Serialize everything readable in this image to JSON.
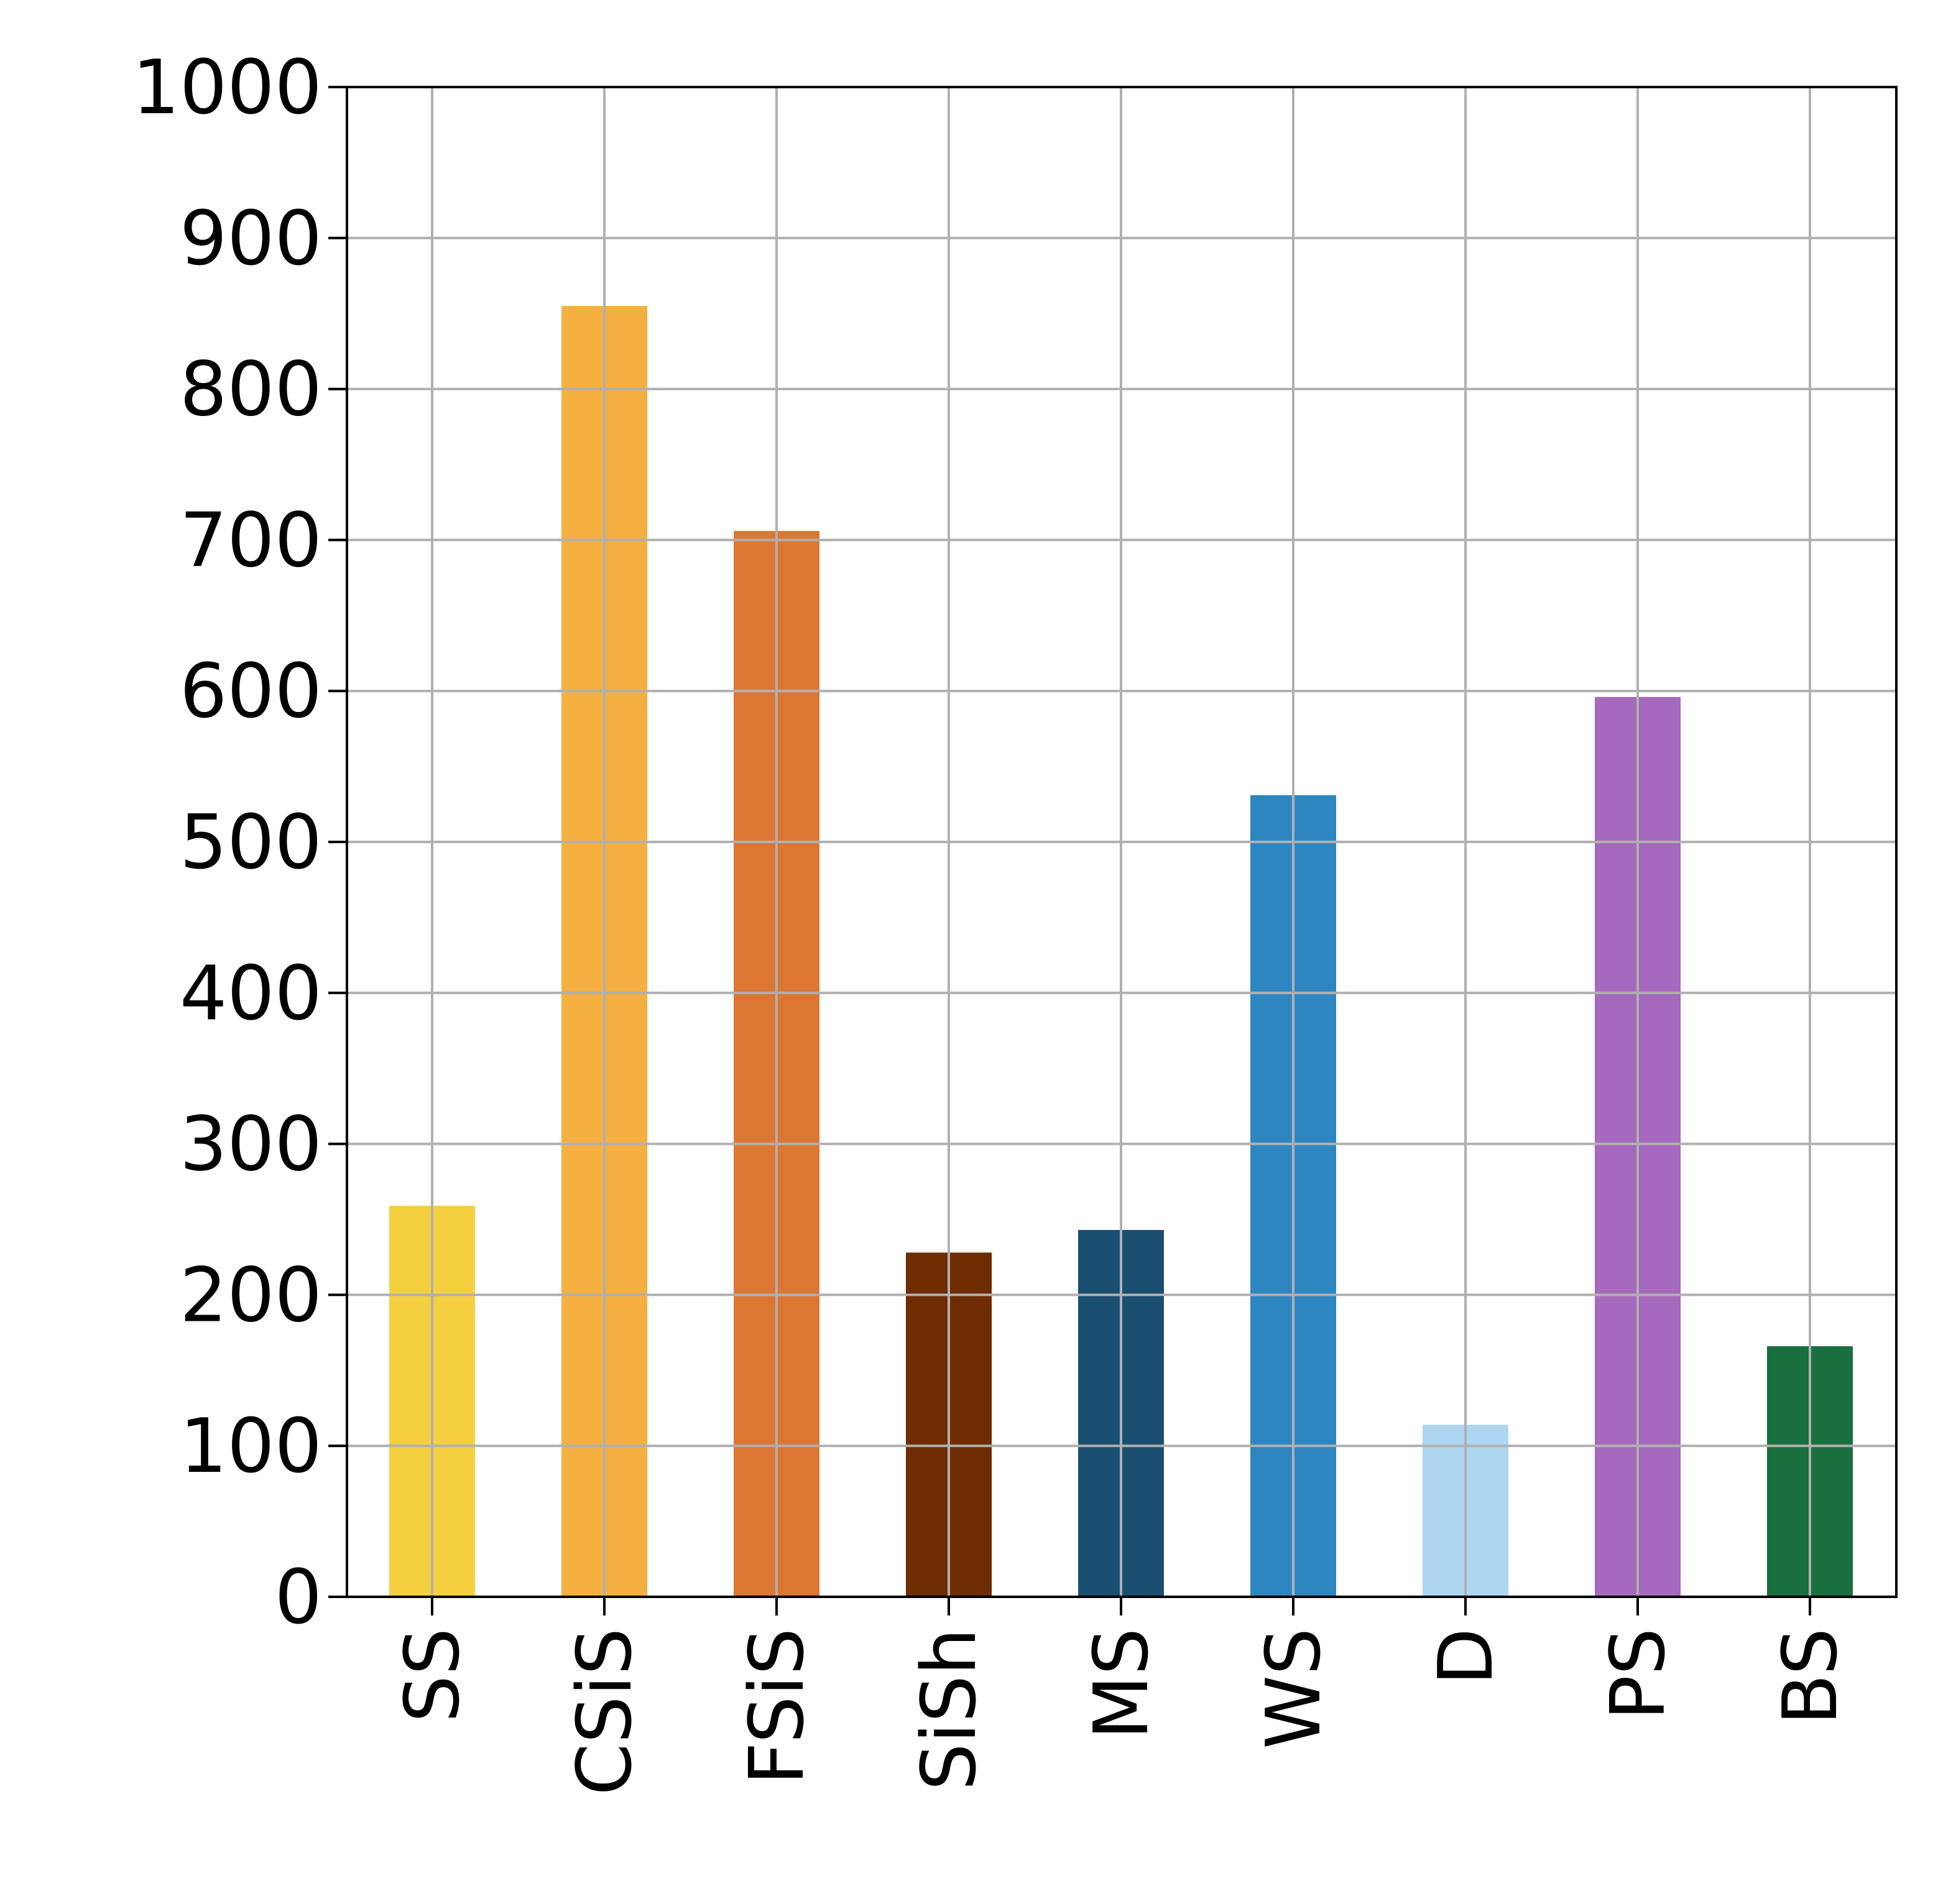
{
  "chart_data": {
    "type": "bar",
    "title": "",
    "xlabel": "",
    "ylabel": "",
    "categories": [
      "SS",
      "CSiS",
      "FSiS",
      "SiSh",
      "MS",
      "WS",
      "D",
      "PS",
      "BS"
    ],
    "values": [
      259,
      855,
      706,
      228,
      243,
      531,
      114,
      596,
      166
    ],
    "colors": [
      "#F4D03F",
      "#F5B041",
      "#DC7633",
      "#6E2C00",
      "#1B4F72",
      "#2E86C1",
      "#AED6F1",
      "#A569BD",
      "#196F3D"
    ],
    "ylim": [
      0,
      1000
    ],
    "yticks": [
      "0",
      "100",
      "200",
      "300",
      "400",
      "500",
      "600",
      "700",
      "800",
      "900",
      "1000"
    ],
    "yticks_values": [
      0,
      100,
      200,
      300,
      400,
      500,
      600,
      700,
      800,
      900,
      1000
    ],
    "grid": true,
    "grid_color": "#b0b0b0"
  }
}
